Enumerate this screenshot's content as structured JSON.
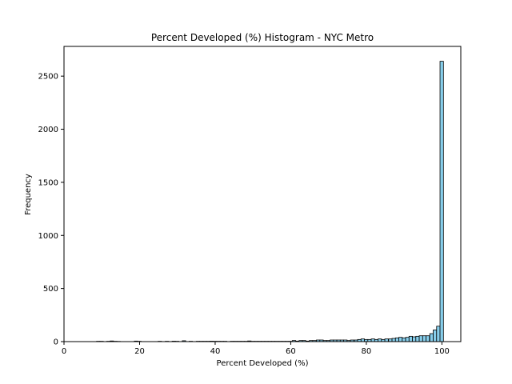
{
  "chart_data": {
    "type": "bar",
    "title": "Percent Developed (%) Histogram - NYC Metro",
    "xlabel": "Percent Developed (%)",
    "ylabel": "Frequency",
    "xlim": [
      0,
      105
    ],
    "ylim": [
      0,
      2780
    ],
    "xticks": [
      0,
      20,
      40,
      60,
      80,
      100
    ],
    "yticks": [
      0,
      500,
      1000,
      1500,
      2000,
      2500
    ],
    "grid": false,
    "colors": {
      "bar_fill": "#87ceeb",
      "bar_edge": "#000000",
      "axis": "#000000"
    },
    "bin_width": 0.91,
    "bins": [
      [
        8.6,
        3
      ],
      [
        9.5,
        3
      ],
      [
        11.3,
        3
      ],
      [
        12.2,
        6
      ],
      [
        13.1,
        3
      ],
      [
        14.0,
        2
      ],
      [
        18.6,
        5
      ],
      [
        19.5,
        3
      ],
      [
        24.9,
        3
      ],
      [
        26.8,
        3
      ],
      [
        28.6,
        4
      ],
      [
        29.5,
        3
      ],
      [
        31.3,
        8
      ],
      [
        33.1,
        3
      ],
      [
        35.0,
        3
      ],
      [
        35.9,
        3
      ],
      [
        36.8,
        3
      ],
      [
        37.7,
        3
      ],
      [
        38.6,
        4
      ],
      [
        39.5,
        3
      ],
      [
        40.4,
        3
      ],
      [
        41.3,
        3
      ],
      [
        42.2,
        3
      ],
      [
        44.0,
        3
      ],
      [
        44.9,
        3
      ],
      [
        45.9,
        3
      ],
      [
        46.8,
        3
      ],
      [
        47.7,
        3
      ],
      [
        48.6,
        6
      ],
      [
        49.5,
        3
      ],
      [
        50.4,
        3
      ],
      [
        51.3,
        3
      ],
      [
        52.2,
        3
      ],
      [
        53.1,
        3
      ],
      [
        54.0,
        3
      ],
      [
        54.9,
        3
      ],
      [
        55.8,
        3
      ],
      [
        56.8,
        3
      ],
      [
        57.7,
        3
      ],
      [
        58.6,
        3
      ],
      [
        59.5,
        3
      ],
      [
        60.4,
        10
      ],
      [
        61.3,
        5
      ],
      [
        62.2,
        10
      ],
      [
        63.1,
        10
      ],
      [
        64.0,
        5
      ],
      [
        64.9,
        10
      ],
      [
        65.8,
        10
      ],
      [
        66.8,
        15
      ],
      [
        67.7,
        15
      ],
      [
        68.6,
        10
      ],
      [
        69.5,
        10
      ],
      [
        70.4,
        15
      ],
      [
        71.3,
        15
      ],
      [
        72.2,
        15
      ],
      [
        73.1,
        15
      ],
      [
        74.0,
        15
      ],
      [
        74.9,
        10
      ],
      [
        75.8,
        15
      ],
      [
        76.8,
        15
      ],
      [
        77.7,
        20
      ],
      [
        78.6,
        25
      ],
      [
        79.5,
        20
      ],
      [
        80.4,
        20
      ],
      [
        81.3,
        25
      ],
      [
        82.2,
        20
      ],
      [
        83.1,
        25
      ],
      [
        84.0,
        20
      ],
      [
        84.9,
        25
      ],
      [
        85.9,
        25
      ],
      [
        86.8,
        30
      ],
      [
        87.7,
        35
      ],
      [
        88.6,
        40
      ],
      [
        89.5,
        35
      ],
      [
        90.4,
        40
      ],
      [
        91.3,
        50
      ],
      [
        92.2,
        45
      ],
      [
        93.1,
        50
      ],
      [
        94.0,
        55
      ],
      [
        94.9,
        55
      ],
      [
        95.8,
        55
      ],
      [
        96.8,
        75
      ],
      [
        97.7,
        110
      ],
      [
        98.6,
        145
      ],
      [
        99.5,
        2640
      ]
    ]
  }
}
